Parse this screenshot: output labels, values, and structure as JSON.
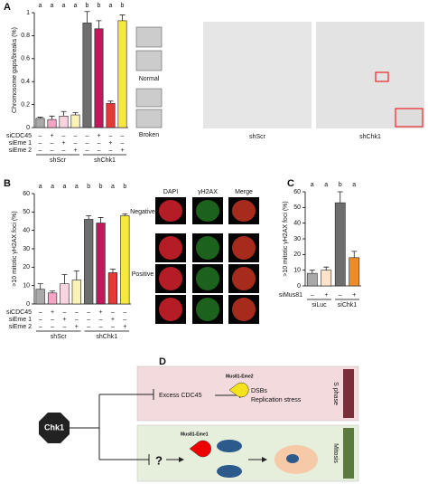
{
  "panels": [
    "A",
    "B",
    "C",
    "D"
  ],
  "chart_data": [
    {
      "type": "bar",
      "ylabel": "Chromosome gaps/breaks (%)",
      "ylim": [
        0,
        1.0
      ],
      "yticks": [
        0,
        0.2,
        0.4,
        0.6,
        0.8,
        1.0
      ],
      "values": [
        0.08,
        0.07,
        0.1,
        0.11,
        0.91,
        0.86,
        0.21,
        0.93
      ],
      "errors": [
        0.01,
        0.03,
        0.04,
        0.02,
        0.1,
        0.07,
        0.02,
        0.05
      ],
      "colors": [
        "#a9a9a9",
        "#f4a6c4",
        "#f9d3e0",
        "#fbf3b5",
        "#6e6e6e",
        "#c2185b",
        "#e53935",
        "#f7e93a"
      ],
      "annotations": [
        "a",
        "a",
        "a",
        "a",
        "b",
        "b",
        "a",
        "b"
      ],
      "conditions": [
        {
          "name": "siCDC45",
          "values": [
            "–",
            "+",
            "–",
            "–",
            "–",
            "+",
            "–",
            "–"
          ]
        },
        {
          "name": "siEme 1",
          "values": [
            "–",
            "–",
            "+",
            "–",
            "–",
            "–",
            "+",
            "–"
          ]
        },
        {
          "name": "siEme 2",
          "values": [
            "–",
            "–",
            "–",
            "+",
            "–",
            "–",
            "–",
            "+"
          ]
        }
      ],
      "groups": [
        "shScr",
        "shChk1"
      ]
    },
    {
      "type": "bar",
      "ylabel": ">10 mitotic γH2AX foci (%)",
      "ylim": [
        0,
        60
      ],
      "yticks": [
        0,
        10,
        20,
        30,
        40,
        50,
        60
      ],
      "values": [
        8,
        6,
        11,
        13,
        46,
        44,
        17,
        48
      ],
      "errors": [
        3,
        1,
        5,
        5,
        2,
        3,
        2,
        1
      ],
      "colors": [
        "#a9a9a9",
        "#f4a6c4",
        "#f9d3e0",
        "#fbf3b5",
        "#6e6e6e",
        "#c2185b",
        "#e53935",
        "#f7e93a"
      ],
      "annotations": [
        "a",
        "a",
        "a",
        "a",
        "b",
        "b",
        "a",
        "b"
      ],
      "conditions": [
        {
          "name": "siCDC45",
          "values": [
            "–",
            "+",
            "–",
            "–",
            "–",
            "+",
            "–",
            "–"
          ]
        },
        {
          "name": "siEme 1",
          "values": [
            "–",
            "–",
            "+",
            "–",
            "–",
            "–",
            "+",
            "–"
          ]
        },
        {
          "name": "siEme 2",
          "values": [
            "–",
            "–",
            "–",
            "+",
            "–",
            "–",
            "–",
            "+"
          ]
        }
      ],
      "groups": [
        "shScr",
        "shChk1"
      ]
    },
    {
      "type": "bar",
      "ylabel": ">10 mitotic γH2AX foci (%)",
      "ylim": [
        0,
        60
      ],
      "yticks": [
        0,
        10,
        20,
        30,
        40,
        50,
        60
      ],
      "values": [
        8,
        10,
        53,
        18
      ],
      "errors": [
        2,
        2,
        7,
        4
      ],
      "colors": [
        "#a9a9a9",
        "#fde3c8",
        "#6e6e6e",
        "#f08a24"
      ],
      "annotations": [
        "a",
        "a",
        "b",
        "a"
      ],
      "conditions": [
        {
          "name": "siMus81",
          "values": [
            "–",
            "+",
            "–",
            "+"
          ]
        }
      ],
      "groups": [
        "siLuc",
        "siChk1"
      ]
    }
  ],
  "images": {
    "insets": [
      "Normal",
      "Broken"
    ],
    "metaphase": [
      "shScr",
      "shChk1"
    ],
    "columns": [
      "DAPI",
      "γH2AX",
      "Merge"
    ],
    "rows": [
      "Negative",
      "Positive"
    ]
  },
  "diagram": {
    "chk1": "Chk1",
    "trigger": "Excess CDC45",
    "s_enzyme": "Mus81-Eme2",
    "outcomes": [
      "DSBs",
      "Replication stress"
    ],
    "s_label": "S phase",
    "unknown": "?",
    "m_enzyme": "Mus81-Eme1",
    "m_label": "Mitosis"
  }
}
